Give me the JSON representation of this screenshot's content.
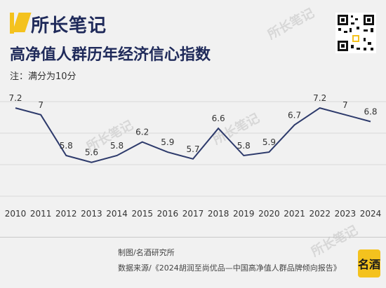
{
  "brand": {
    "name": "所长笔记",
    "stamp": "名酒"
  },
  "chart_data": {
    "type": "line",
    "title": "高净值人群历年经济信心指数",
    "note": "注：满分为10分",
    "categories": [
      "2010",
      "2011",
      "2012",
      "2013",
      "2014",
      "2015",
      "2016",
      "2017",
      "2018",
      "2019",
      "2020",
      "2021",
      "2022",
      "2023",
      "2024"
    ],
    "series": [
      {
        "values": [
          7.2,
          7,
          5.8,
          5.6,
          5.8,
          6.2,
          5.9,
          5.7,
          6.6,
          5.8,
          5.9,
          6.7,
          7.2,
          7,
          6.8
        ]
      }
    ],
    "value_labels": [
      "7.2",
      "7",
      "5.8",
      "5.6",
      "5.8",
      "6.2",
      "5.9",
      "5.7",
      "6.6",
      "5.8",
      "5.9",
      "6.7",
      "7.2",
      "7",
      "6.8"
    ],
    "ylim": [
      4.5,
      7.8
    ],
    "grid": true,
    "colors": {
      "line": "#2d3a6b",
      "grid": "#d9d9d9"
    }
  },
  "footer": {
    "maker": "制图/名酒研究所",
    "source": "数据来源/《2024胡润至尚优品—中国高净值人群品牌倾向报告》"
  }
}
